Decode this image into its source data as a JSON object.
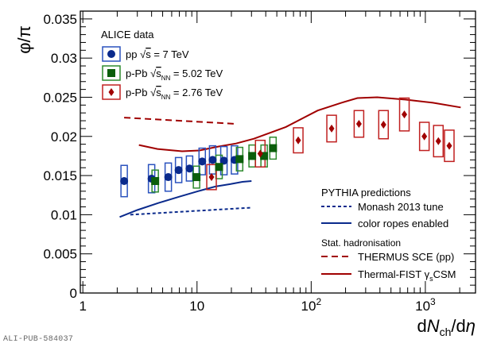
{
  "chart_data": {
    "type": "scatter",
    "title": "",
    "xlabel": "dN_ch/dη",
    "ylabel": "φ/π",
    "xscale": "log",
    "xlim": [
      0.95,
      2750
    ],
    "ylim": [
      0,
      0.036
    ],
    "x_ticks": [
      {
        "value": 1,
        "label": "1",
        "sup": ""
      },
      {
        "value": 10,
        "label": "10",
        "sup": ""
      },
      {
        "value": 100,
        "label": "10",
        "sup": "2"
      },
      {
        "value": 1000,
        "label": "10",
        "sup": "3"
      }
    ],
    "y_ticks": [
      {
        "value": 0,
        "label": "0"
      },
      {
        "value": 0.005,
        "label": "0.005"
      },
      {
        "value": 0.01,
        "label": "0.01"
      },
      {
        "value": 0.015,
        "label": "0.015"
      },
      {
        "value": 0.02,
        "label": "0.02"
      },
      {
        "value": 0.025,
        "label": "0.025"
      },
      {
        "value": 0.03,
        "label": "0.03"
      },
      {
        "value": 0.035,
        "label": "0.035"
      }
    ],
    "grid": false,
    "data_legend": {
      "header": "ALICE data",
      "placement": "top-left"
    },
    "series": [
      {
        "name": "pp √s = 7 TeV",
        "label_main": "pp ",
        "label_sqrt": "s",
        "label_sub": "",
        "label_tail": " = 7 TeV",
        "marker": "circle",
        "color": "#0a2a8c",
        "box_color": "#2a52be",
        "x": [
          2.3,
          4.0,
          5.6,
          6.9,
          8.6,
          11.1,
          13.7,
          17.2,
          21.3
        ],
        "y": [
          0.0143,
          0.0146,
          0.0148,
          0.0157,
          0.0159,
          0.0168,
          0.017,
          0.0169,
          0.017
        ],
        "syst": [
          0.002,
          0.0018,
          0.0018,
          0.0016,
          0.0016,
          0.0017,
          0.0018,
          0.0018,
          0.0018
        ]
      },
      {
        "name": "p-Pb √sNN = 5.02 TeV",
        "label_main": "p-Pb ",
        "label_sqrt": "s",
        "label_sub": "NN",
        "label_tail": " = 5.02 TeV",
        "marker": "square",
        "color": "#0b5e0b",
        "box_color": "#2e8b2e",
        "x": [
          4.3,
          9.9,
          15.6,
          23.6,
          30.4,
          38.7,
          46.3
        ],
        "y": [
          0.0143,
          0.0148,
          0.0161,
          0.0171,
          0.0175,
          0.0175,
          0.0185
        ],
        "syst": [
          0.0014,
          0.0014,
          0.0015,
          0.0015,
          0.0014,
          0.0014,
          0.0014
        ]
      },
      {
        "name": "p-Pb √sNN = 2.76 TeV",
        "label_main": "p-Pb ",
        "label_sqrt": "s",
        "label_sub": "NN",
        "label_tail": " = 2.76 TeV",
        "marker": "diamond",
        "color": "#a00000",
        "box_color": "#c02020",
        "x": [
          13.4,
          35.8,
          77,
          151,
          262,
          430,
          655,
          980,
          1300,
          1620
        ],
        "y": [
          0.0148,
          0.0178,
          0.0195,
          0.021,
          0.0216,
          0.0215,
          0.0228,
          0.02,
          0.0194,
          0.0188
        ],
        "syst": [
          0.0016,
          0.0017,
          0.0016,
          0.0017,
          0.0017,
          0.0018,
          0.0021,
          0.0018,
          0.002,
          0.002
        ]
      }
    ],
    "model_legend": {
      "group1_header": "PYTHIA predictions",
      "group2_header": "Stat. hadronisation",
      "placement": "bottom-right"
    },
    "curves": [
      {
        "name": "Monash 2013 tune",
        "group": 1,
        "style": "dotted",
        "color": "#0a2a8c",
        "x": [
          2.6,
          30
        ],
        "y": [
          0.01,
          0.0109
        ]
      },
      {
        "name": "color ropes enabled",
        "group": 1,
        "style": "solid",
        "color": "#0a2a8c",
        "x": [
          2.1,
          3.0,
          4.6,
          7.0,
          10.2,
          14.5,
          19.5,
          25,
          30
        ],
        "y": [
          0.0097,
          0.0106,
          0.0115,
          0.0123,
          0.013,
          0.0136,
          0.0139,
          0.0142,
          0.0143
        ]
      },
      {
        "name": "THERMUS SCE (pp)",
        "group": 2,
        "style": "dashed",
        "color": "#a00000",
        "x": [
          2.3,
          21.8
        ],
        "y": [
          0.0224,
          0.0216
        ]
      },
      {
        "name": "Thermal-FIST γsCSM",
        "label_main": "Thermal-FIST ",
        "label_gamma": "γ",
        "label_sub": "s",
        "label_tail": "CSM",
        "group": 2,
        "style": "solid",
        "color": "#a00000",
        "x": [
          3.1,
          4.5,
          7.4,
          10.5,
          15.3,
          22,
          31.5,
          60,
          114,
          184,
          254,
          379,
          664,
          1165,
          2040
        ],
        "y": [
          0.0189,
          0.0184,
          0.0181,
          0.0182,
          0.0187,
          0.0191,
          0.0197,
          0.0212,
          0.0233,
          0.0243,
          0.0249,
          0.025,
          0.0247,
          0.0243,
          0.0237
        ]
      }
    ]
  },
  "footer": {
    "pub_id": "ALI-PUB-584037"
  }
}
